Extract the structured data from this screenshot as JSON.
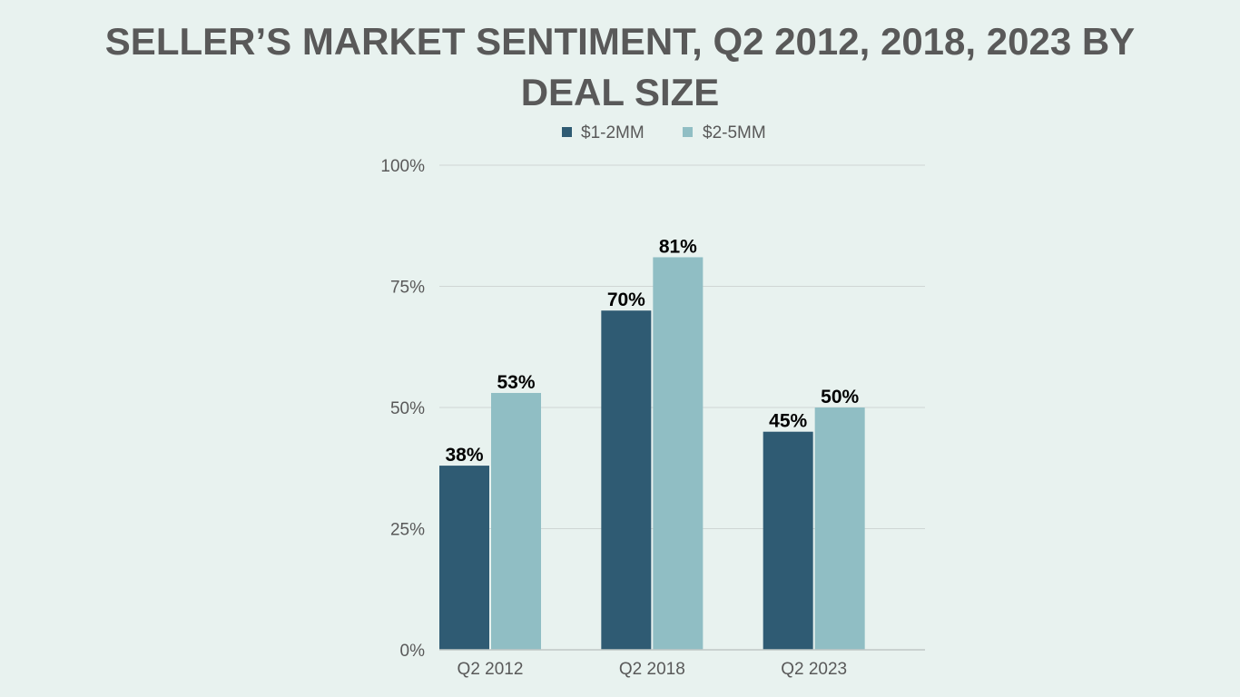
{
  "page": {
    "background": "#e8f2ef"
  },
  "chart_data": {
    "type": "bar",
    "title_lines": [
      "SELLER’S MARKET SENTIMENT, Q2 2012, 2018, 2023 BY",
      "DEAL SIZE"
    ],
    "title": "SELLER’S MARKET SENTIMENT, Q2 2012, 2018, 2023 BY DEAL SIZE",
    "xlabel": "",
    "ylabel": "",
    "categories": [
      "Q2 2012",
      "Q2 2018",
      "Q2 2023"
    ],
    "series": [
      {
        "name": "$1-2MM",
        "color": "#2f5b73",
        "values": [
          38,
          70,
          45
        ],
        "labels": [
          "38%",
          "70%",
          "45%"
        ]
      },
      {
        "name": "$2-5MM",
        "color": "#90bec4",
        "values": [
          53,
          81,
          50
        ],
        "labels": [
          "53%",
          "81%",
          "50%"
        ]
      }
    ],
    "ylim": [
      0,
      100
    ],
    "yticks": [
      0,
      25,
      50,
      75,
      100
    ],
    "ytick_labels": [
      "0%",
      "25%",
      "50%",
      "75%",
      "100%"
    ],
    "grid": true,
    "legend_position": "top-center"
  }
}
